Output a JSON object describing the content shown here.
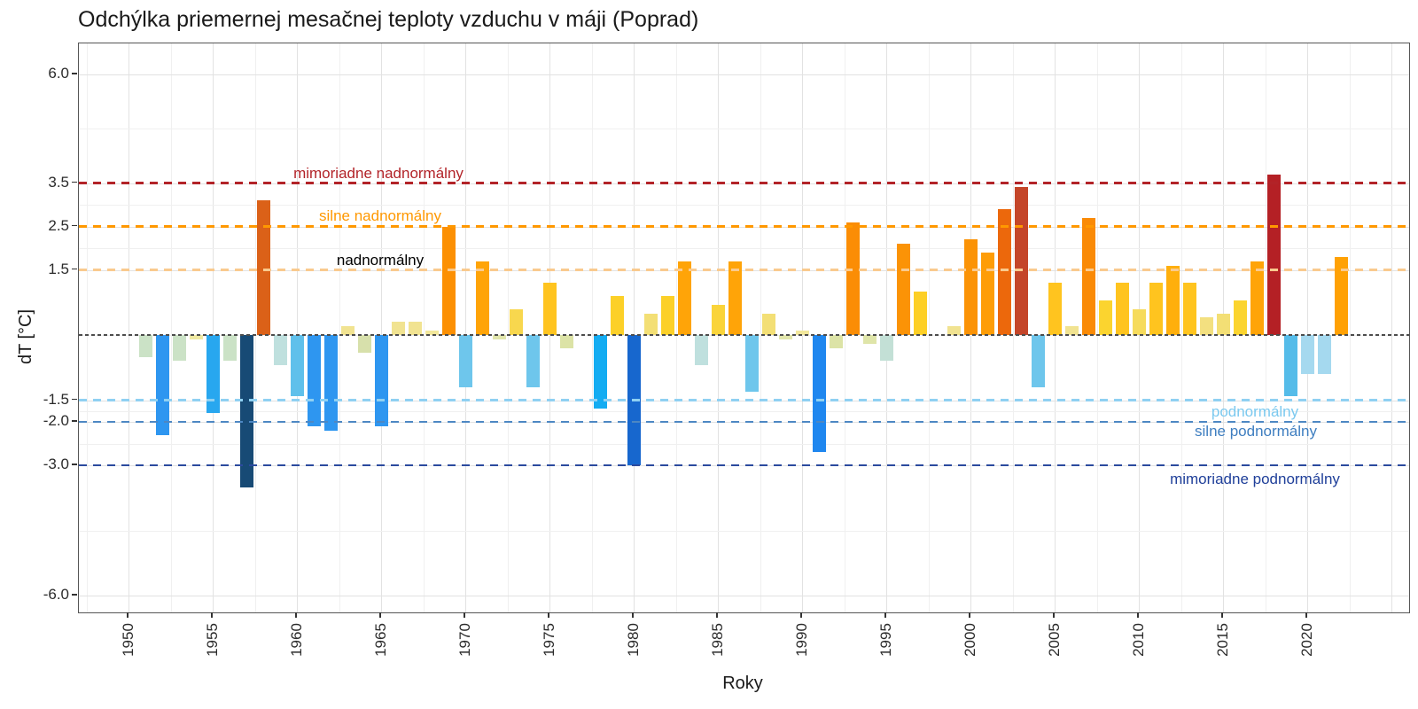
{
  "title": "Odchýlka priemernej mesačnej teploty vzduchu v máji (Poprad)",
  "axes": {
    "x_label": "Roky",
    "y_label": "dT [°C]",
    "y_tick_values": [
      6.0,
      3.5,
      2.5,
      1.5,
      -1.5,
      -2.0,
      -3.0,
      -6.0
    ],
    "y_tick_labels": [
      "6.0",
      "3.5",
      "2.5",
      "1.5",
      "-1.5",
      "-2.0",
      "-3.0",
      "-6.0"
    ],
    "x_tick_values": [
      1950,
      1955,
      1960,
      1965,
      1970,
      1975,
      1980,
      1985,
      1990,
      1995,
      2000,
      2005,
      2010,
      2015,
      2020
    ]
  },
  "reference_lines": [
    {
      "value": 3.5,
      "label": "mimoriadne nadnormálny",
      "line_color": "#B22328",
      "label_color": "#B22328",
      "side": "above-left"
    },
    {
      "value": 2.5,
      "label": "silne nadnormálny",
      "line_color": "#FF9800",
      "label_color": "#FF9800",
      "side": "above-left"
    },
    {
      "value": 1.5,
      "label": "nadnormálny",
      "line_color": "#F9CA8E",
      "label_color": "#F7C astarted",
      "side": "above-left"
    },
    {
      "value": -1.5,
      "label": "podnormálny",
      "line_color": "#8FD0F2",
      "label_color": "#7BC9EF",
      "side": "below-right"
    },
    {
      "value": -2.0,
      "label": "silne podnormálny",
      "line_color": "#4D87C3",
      "label_color": "#3E7EC0",
      "side": "below-right"
    },
    {
      "value": -3.0,
      "label": "mimoriadne podnormálny",
      "line_color": "#2B4A9E",
      "label_color": "#20409A",
      "side": "below-right"
    }
  ],
  "zero_line": {
    "value": 0,
    "color": "#4d4d4d"
  },
  "chart_data": {
    "type": "bar",
    "title": "Odchýlka priemernej mesačnej teploty vzduchu v máji (Poprad)",
    "xlabel": "Roky",
    "ylabel": "dT [°C]",
    "ylim": [
      -6.55,
      6.7
    ],
    "x_visible_range": [
      1947,
      2026
    ],
    "grid": "on",
    "unit": "°C",
    "bars": [
      {
        "year": 1951,
        "value": -0.5,
        "color": "#CBE2C6"
      },
      {
        "year": 1952,
        "value": -2.3,
        "color": "#2E96F0"
      },
      {
        "year": 1953,
        "value": -0.6,
        "color": "#CBE2C6"
      },
      {
        "year": 1954,
        "value": -0.1,
        "color": "#EFE9A2"
      },
      {
        "year": 1955,
        "value": -1.8,
        "color": "#28A7EF"
      },
      {
        "year": 1956,
        "value": -0.6,
        "color": "#CBE2C6"
      },
      {
        "year": 1957,
        "value": -3.5,
        "color": "#174A75"
      },
      {
        "year": 1958,
        "value": 3.1,
        "color": "#DB6118"
      },
      {
        "year": 1959,
        "value": -0.7,
        "color": "#BFE0DE"
      },
      {
        "year": 1960,
        "value": -1.4,
        "color": "#5FC0EB"
      },
      {
        "year": 1961,
        "value": -2.1,
        "color": "#2E96F0"
      },
      {
        "year": 1962,
        "value": -2.2,
        "color": "#2E96F0"
      },
      {
        "year": 1963,
        "value": 0.2,
        "color": "#F1E391"
      },
      {
        "year": 1964,
        "value": -0.4,
        "color": "#D7E0AB"
      },
      {
        "year": 1965,
        "value": -2.1,
        "color": "#2E96F0"
      },
      {
        "year": 1966,
        "value": 0.3,
        "color": "#F1E391"
      },
      {
        "year": 1967,
        "value": 0.3,
        "color": "#F1E391"
      },
      {
        "year": 1968,
        "value": 0.1,
        "color": "#F2E79B"
      },
      {
        "year": 1969,
        "value": 2.5,
        "color": "#FC9003"
      },
      {
        "year": 1970,
        "value": -1.2,
        "color": "#6EC6EC"
      },
      {
        "year": 1971,
        "value": 1.7,
        "color": "#FFA408"
      },
      {
        "year": 1972,
        "value": -0.1,
        "color": "#E2E6AC"
      },
      {
        "year": 1973,
        "value": 0.6,
        "color": "#F8D74E"
      },
      {
        "year": 1974,
        "value": -1.2,
        "color": "#6EC6EC"
      },
      {
        "year": 1975,
        "value": 1.2,
        "color": "#FFC41F"
      },
      {
        "year": 1976,
        "value": -0.3,
        "color": "#DCE3A6"
      },
      {
        "year": 1977,
        "value": null,
        "color": null
      },
      {
        "year": 1978,
        "value": -1.7,
        "color": "#13ACF2"
      },
      {
        "year": 1979,
        "value": 0.9,
        "color": "#FCD028"
      },
      {
        "year": 1980,
        "value": -3.0,
        "color": "#1767CE"
      },
      {
        "year": 1981,
        "value": 0.5,
        "color": "#F3DF75"
      },
      {
        "year": 1982,
        "value": 0.9,
        "color": "#FCD028"
      },
      {
        "year": 1983,
        "value": 1.7,
        "color": "#FFA408"
      },
      {
        "year": 1984,
        "value": -0.7,
        "color": "#BFE0DE"
      },
      {
        "year": 1985,
        "value": 0.7,
        "color": "#FAD43A"
      },
      {
        "year": 1986,
        "value": 1.7,
        "color": "#FFA408"
      },
      {
        "year": 1987,
        "value": -1.3,
        "color": "#6EC6EC"
      },
      {
        "year": 1988,
        "value": 0.5,
        "color": "#F3DF75"
      },
      {
        "year": 1989,
        "value": -0.1,
        "color": "#E2E6AC"
      },
      {
        "year": 1990,
        "value": 0.1,
        "color": "#F2E79B"
      },
      {
        "year": 1991,
        "value": -2.7,
        "color": "#1F87EF"
      },
      {
        "year": 1992,
        "value": -0.3,
        "color": "#DCE3A6"
      },
      {
        "year": 1993,
        "value": 2.6,
        "color": "#FB8D05"
      },
      {
        "year": 1994,
        "value": -0.2,
        "color": "#DFE5A9"
      },
      {
        "year": 1995,
        "value": -0.6,
        "color": "#C3E0D6"
      },
      {
        "year": 1996,
        "value": 2.1,
        "color": "#FB9306"
      },
      {
        "year": 1997,
        "value": 1.0,
        "color": "#FDCF25"
      },
      {
        "year": 1998,
        "value": null,
        "color": null
      },
      {
        "year": 1999,
        "value": 0.2,
        "color": "#F1E391"
      },
      {
        "year": 2000,
        "value": 2.2,
        "color": "#FB9306"
      },
      {
        "year": 2001,
        "value": 1.9,
        "color": "#FE9D07"
      },
      {
        "year": 2002,
        "value": 2.9,
        "color": "#EC680C"
      },
      {
        "year": 2003,
        "value": 3.4,
        "color": "#C44529"
      },
      {
        "year": 2004,
        "value": -1.2,
        "color": "#6EC6EC"
      },
      {
        "year": 2005,
        "value": 1.2,
        "color": "#FFC41F"
      },
      {
        "year": 2006,
        "value": 0.2,
        "color": "#F1E391"
      },
      {
        "year": 2007,
        "value": 2.7,
        "color": "#FA8A06"
      },
      {
        "year": 2008,
        "value": 0.8,
        "color": "#FBD42F"
      },
      {
        "year": 2009,
        "value": 1.2,
        "color": "#FFC41F"
      },
      {
        "year": 2010,
        "value": 0.6,
        "color": "#F6DB5C"
      },
      {
        "year": 2011,
        "value": 1.2,
        "color": "#FFC41F"
      },
      {
        "year": 2012,
        "value": 1.6,
        "color": "#FFAF0C"
      },
      {
        "year": 2013,
        "value": 1.2,
        "color": "#FFC41F"
      },
      {
        "year": 2014,
        "value": 0.4,
        "color": "#F3E080"
      },
      {
        "year": 2015,
        "value": 0.5,
        "color": "#F3DF75"
      },
      {
        "year": 2016,
        "value": 0.8,
        "color": "#FBD42F"
      },
      {
        "year": 2017,
        "value": 1.7,
        "color": "#FFA408"
      },
      {
        "year": 2018,
        "value": 3.7,
        "color": "#B42025"
      },
      {
        "year": 2019,
        "value": -1.4,
        "color": "#55BCE9"
      },
      {
        "year": 2020,
        "value": -0.9,
        "color": "#A5D9EF"
      },
      {
        "year": 2021,
        "value": -0.9,
        "color": "#A5D9EF"
      },
      {
        "year": 2022,
        "value": 1.8,
        "color": "#FFA104"
      }
    ]
  }
}
